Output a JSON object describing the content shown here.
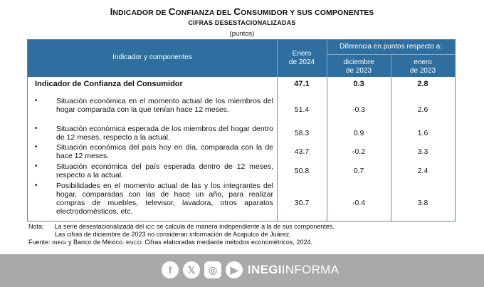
{
  "title": {
    "part1_big": "I",
    "part1_sc": "NDICADOR DE ",
    "part2_big": "C",
    "part2_sc": "ONFIANZA DEL ",
    "part3_big": "C",
    "part3_sc": "ONSUMIDOR Y SUS COMPONENTES"
  },
  "subtitle": "CIFRAS DESESTACIONALIZADAS",
  "units": "(puntos)",
  "header": {
    "indicator": "Indicador y componentes",
    "enero2024_l1": "Enero",
    "enero2024_l2": "de 2024",
    "diff": "Diferencia en puntos respecto a:",
    "dic_l1": "diciembre",
    "dic_l2": "de 2023",
    "ene_l1": "enero",
    "ene_l2": "de 2023"
  },
  "bullet_glyph": "•",
  "rows": [
    {
      "label": "Indicador de Confianza del Consumidor",
      "ene2024": "47.1",
      "dic2023": "0.3",
      "ene2023": "2.8"
    },
    {
      "label": "Situación económica en el momento actual de los miembros del hogar comparada con la que tenían hace 12 meses.",
      "ene2024": "51.4",
      "dic2023": "-0.3",
      "ene2023": "2.6"
    },
    {
      "label": "Situación económica esperada de los miembros del hogar dentro de 12 meses, respecto a la actual.",
      "ene2024": "58.3",
      "dic2023": "0.9",
      "ene2023": "1.6"
    },
    {
      "label": "Situación económica del país hoy en día, comparada con la de hace 12 meses.",
      "ene2024": "43.7",
      "dic2023": "-0.2",
      "ene2023": "3.3"
    },
    {
      "label": "Situación económica del país esperada dentro de 12 meses, respecto a la actual.",
      "ene2024": "50.8",
      "dic2023": "0.7",
      "ene2023": "2.4"
    },
    {
      "label": "Posibilidades en el momento actual de las y los integrantes del hogar, comparadas con las de hace un año, para realizar compras de muebles, televisor, lavadora, otros aparatos electrodomésticos, etc.",
      "ene2024": "30.7",
      "dic2023": "-0.4",
      "ene2023": "3.8"
    }
  ],
  "notes": {
    "nota_label": "Nota:",
    "nota_a": "La serie desestacionalizada del",
    "nota_icc": "ICC",
    "nota_b": "se calcula de manera independiente a la de sus componentes.",
    "nota_line2": "Las cifras de diciembre de 2023 no consideran información de Acapulco de Juárez.",
    "fuente_label": "Fuente:",
    "fuente_inegi": "INEGI",
    "fuente_a": "y Banco de México.",
    "fuente_enco": "ENCO.",
    "fuente_b": "Cifras elaboradas mediante métodos econométricos, 2024."
  },
  "footer": {
    "icons": [
      "facebook-icon",
      "x-icon",
      "instagram-icon",
      "youtube-icon"
    ],
    "fb_glyph": "f",
    "x_glyph": "𝕏",
    "ig_glyph": "◎",
    "yt_glyph": "▶",
    "brand_bold": "INEGI",
    "brand_light": "INFORMA",
    "bg_color": "#a9a9a9"
  },
  "colors": {
    "header_bg": "#2e6f9f"
  }
}
